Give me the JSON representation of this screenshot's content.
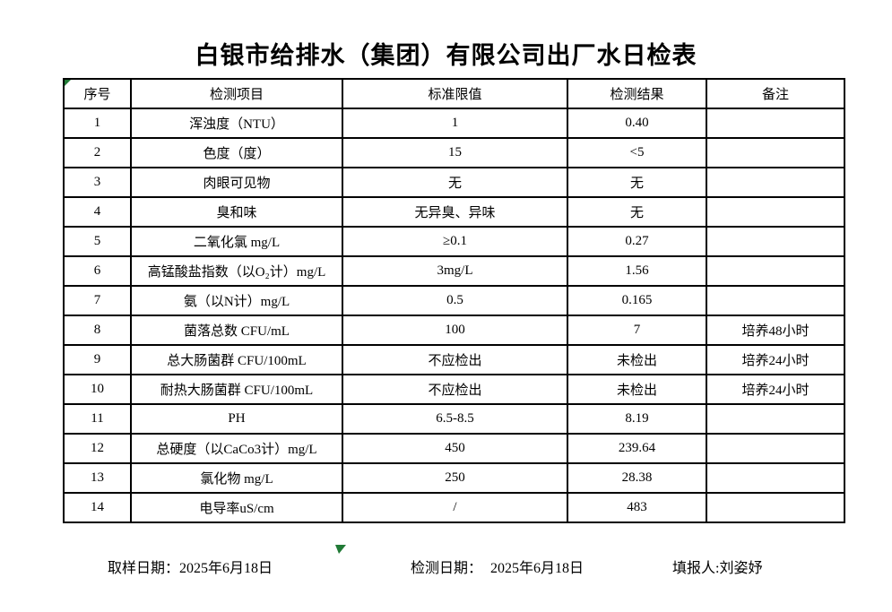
{
  "title": "白银市给排水（集团）有限公司出厂水日检表",
  "colors": {
    "marker_green": "#217a36",
    "table_border": "#000000",
    "background": "#ffffff",
    "text": "#000000"
  },
  "icons": {
    "cell_error_indicator": "green-corner-triangle",
    "selection_marker": "green-down-triangle"
  },
  "table": {
    "headers": [
      "序号",
      "检测项目",
      "标准限值",
      "检测结果",
      "备注"
    ],
    "rows": [
      {
        "no": "1",
        "item": "浑浊度（NTU）",
        "limit": "1",
        "result": "0.40",
        "note": ""
      },
      {
        "no": "2",
        "item": "色度（度）",
        "limit": "15",
        "result": "<5",
        "note": ""
      },
      {
        "no": "3",
        "item": "肉眼可见物",
        "limit": "无",
        "result": "无",
        "note": ""
      },
      {
        "no": "4",
        "item": "臭和味",
        "limit": "无异臭、异味",
        "result": "无",
        "note": ""
      },
      {
        "no": "5",
        "item": "二氧化氯 mg/L",
        "limit": "≥0.1",
        "result": "0.27",
        "note": ""
      },
      {
        "no": "6",
        "item": "高锰酸盐指数（以O₂计）mg/L",
        "limit": "3mg/L",
        "result": "1.56",
        "note": ""
      },
      {
        "no": "7",
        "item": "氨（以N计）mg/L",
        "limit": "0.5",
        "result": "0.165",
        "note": ""
      },
      {
        "no": "8",
        "item": "菌落总数 CFU/mL",
        "limit": "100",
        "result": "7",
        "note": "培养48小时"
      },
      {
        "no": "9",
        "item": "总大肠菌群 CFU/100mL",
        "limit": "不应检出",
        "result": "未检出",
        "note": "培养24小时"
      },
      {
        "no": "10",
        "item": "耐热大肠菌群 CFU/100mL",
        "limit": "不应检出",
        "result": "未检出",
        "note": "培养24小时"
      },
      {
        "no": "11",
        "item": "PH",
        "limit": "6.5-8.5",
        "result": "8.19",
        "note": ""
      },
      {
        "no": "12",
        "item": "总硬度（以CaCo3计）mg/L",
        "limit": "450",
        "result": "239.64",
        "note": ""
      },
      {
        "no": "13",
        "item": "氯化物 mg/L",
        "limit": "250",
        "result": "28.38",
        "note": ""
      },
      {
        "no": "14",
        "item": "电导率uS/cm",
        "limit": "/",
        "result": "483",
        "note": ""
      }
    ]
  },
  "footer": {
    "sample_date_label": "取样日期：",
    "sample_date_value": "2025年6月18日",
    "test_date_label": "检测日期：",
    "test_date_value": "2025年6月18日",
    "reporter_label": "填报人:",
    "reporter_value": "刘姿妤"
  }
}
